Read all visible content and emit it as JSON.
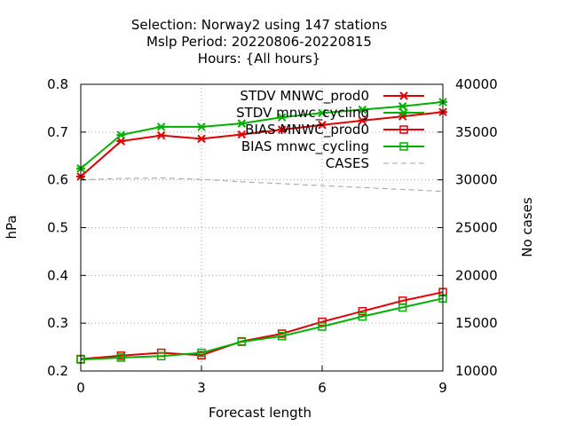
{
  "chart_data": {
    "type": "line",
    "title_lines": [
      "Selection: Norway2 using   147 stations",
      "Mslp   Period: 20220806-20220815",
      "Hours: {All hours}"
    ],
    "xlabel": "Forecast length",
    "ylabel": "hPa",
    "y2label": "No cases",
    "xlim": [
      0,
      9
    ],
    "ylim": [
      0.2,
      0.8
    ],
    "y2lim": [
      10000,
      40000
    ],
    "xticks": [
      "0",
      "3",
      "6",
      "9"
    ],
    "yticks": [
      "0.2",
      "0.3",
      "0.4",
      "0.5",
      "0.6",
      "0.7",
      "0.8"
    ],
    "y2ticks": [
      "10000",
      "15000",
      "20000",
      "25000",
      "30000",
      "35000",
      "40000"
    ],
    "grid": true,
    "legend_position": "top-right",
    "x": [
      0,
      1,
      2,
      3,
      4,
      5,
      6,
      7,
      8,
      9
    ],
    "series": [
      {
        "name": "STDV MNWC_prod0",
        "axis": "y",
        "color": "#e00000",
        "marker": "x",
        "values": [
          0.607,
          0.681,
          0.693,
          0.686,
          0.695,
          0.705,
          0.715,
          0.724,
          0.733,
          0.742
        ]
      },
      {
        "name": "STDV mnwc_cycling",
        "axis": "y",
        "color": "#00b000",
        "marker": "x",
        "values": [
          0.624,
          0.694,
          0.711,
          0.711,
          0.718,
          0.731,
          0.74,
          0.747,
          0.754,
          0.763
        ]
      },
      {
        "name": "BIAS MNWC_prod0",
        "axis": "y",
        "color": "#e00000",
        "marker": "square",
        "values": [
          0.225,
          0.232,
          0.238,
          0.233,
          0.262,
          0.278,
          0.303,
          0.325,
          0.347,
          0.365
        ]
      },
      {
        "name": "BIAS mnwc_cycling",
        "axis": "y",
        "color": "#00b000",
        "marker": "square",
        "values": [
          0.224,
          0.228,
          0.231,
          0.238,
          0.261,
          0.273,
          0.293,
          0.314,
          0.333,
          0.352
        ]
      },
      {
        "name": "CASES",
        "axis": "y2",
        "color": "#a0a0a0",
        "marker": "none",
        "dashed": true,
        "values": [
          30000,
          30150,
          30200,
          30050,
          29800,
          29600,
          29400,
          29200,
          29000,
          28800
        ]
      }
    ]
  }
}
